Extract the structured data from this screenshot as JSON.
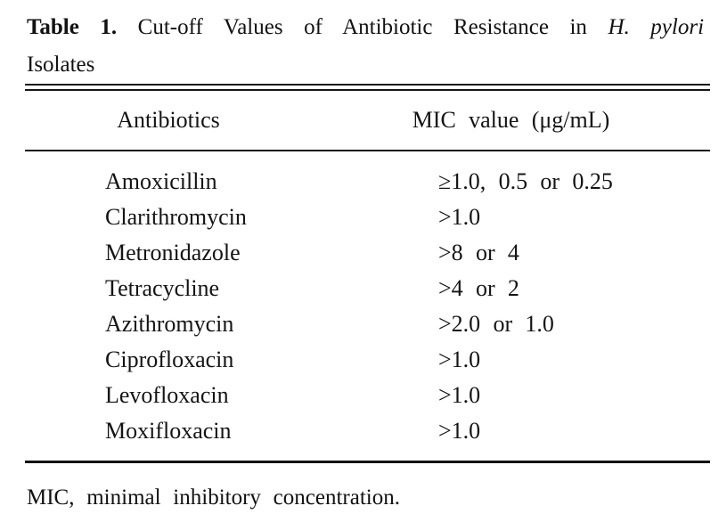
{
  "page": {
    "background": "#ffffff",
    "text_color": "#141414",
    "rule_color": "#161616"
  },
  "caption": {
    "label": "Table 1.",
    "text": "Cut-off Values of Antibiotic Resistance in",
    "species_italic": "H. pylori",
    "line2": "Isolates"
  },
  "table": {
    "headers": {
      "antibiotics": "Antibiotics",
      "mic": "MIC value (μg/mL)"
    },
    "rows": [
      {
        "antibiotic": "Amoxicillin",
        "mic": "≥1.0, 0.5 or 0.25"
      },
      {
        "antibiotic": "Clarithromycin",
        "mic": ">1.0"
      },
      {
        "antibiotic": "Metronidazole",
        "mic": ">8 or 4"
      },
      {
        "antibiotic": "Tetracycline",
        "mic": ">4 or 2"
      },
      {
        "antibiotic": "Azithromycin",
        "mic": ">2.0 or 1.0"
      },
      {
        "antibiotic": "Ciprofloxacin",
        "mic": ">1.0"
      },
      {
        "antibiotic": "Levofloxacin",
        "mic": ">1.0"
      },
      {
        "antibiotic": "Moxifloxacin",
        "mic": ">1.0"
      }
    ]
  },
  "footnote": "MIC, minimal inhibitory concentration."
}
